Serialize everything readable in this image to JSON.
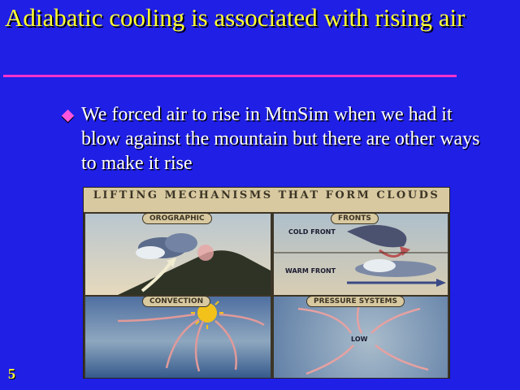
{
  "slide": {
    "title": "Adiabatic cooling is associated with rising air",
    "bullet": "We forced air to rise in MtnSim when we had it blow against the mountain but there are other ways to make it rise",
    "number": "5"
  },
  "figure": {
    "title": "LIFTING MECHANISMS THAT FORM CLOUDS",
    "panels": {
      "orographic": "OROGRAPHIC",
      "fronts": "FRONTS",
      "convection": "CONVECTION",
      "pressure": "PRESSURE SYSTEMS"
    },
    "labels": {
      "cold_front": "COLD FRONT",
      "warm_front": "WARM FRONT",
      "low": "LOW"
    }
  },
  "colors": {
    "background": "#1f1fe6",
    "title": "#ffff33",
    "rule": "#ff33cc",
    "bullet": "#ff55dd"
  }
}
